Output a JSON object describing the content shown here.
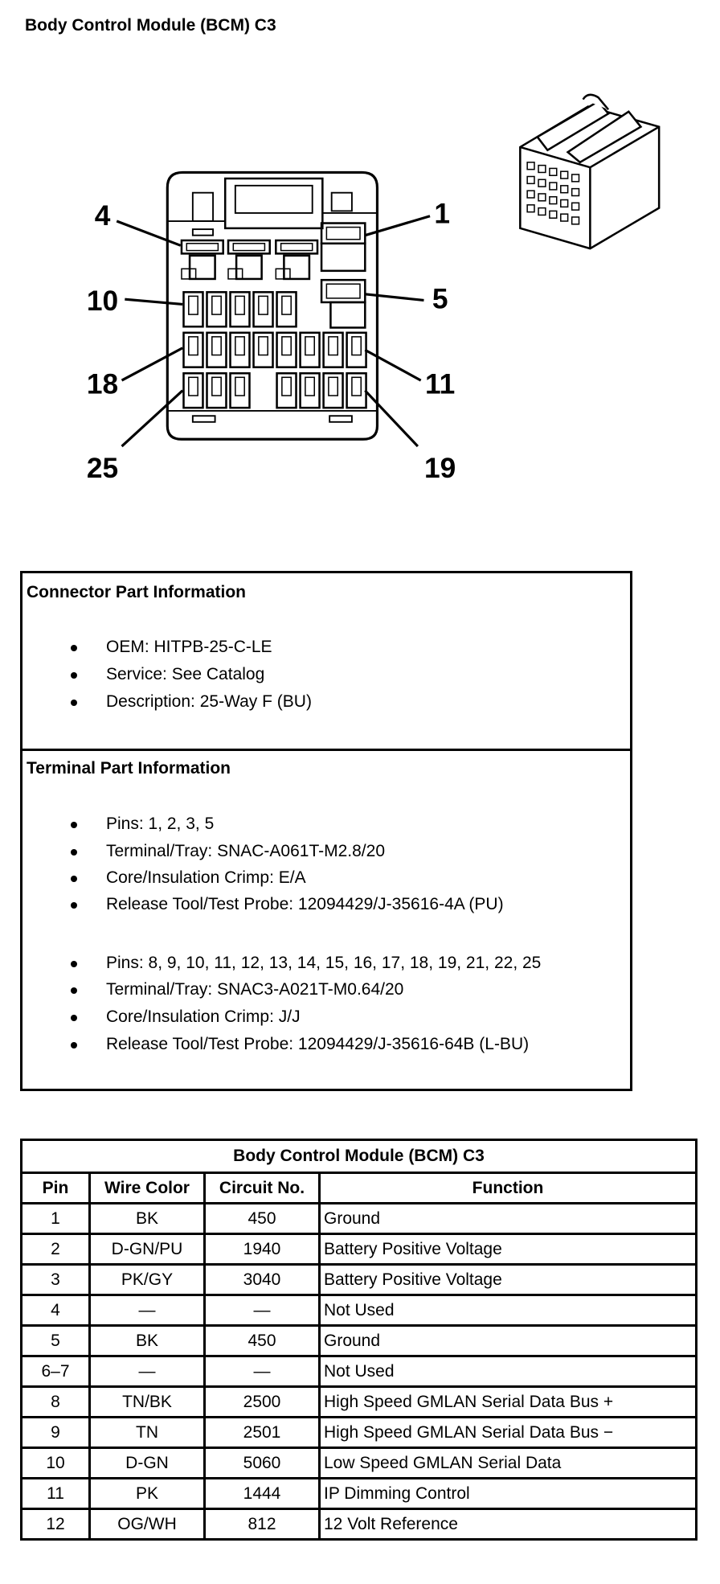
{
  "title": "Body Control Module (BCM) C3",
  "diagram": {
    "pin_labels": [
      "4",
      "1",
      "10",
      "5",
      "18",
      "11",
      "25",
      "19"
    ]
  },
  "connector_info": {
    "heading": "Connector Part Information",
    "items": [
      "OEM: HITPB-25-C-LE",
      "Service: See Catalog",
      "Description: 25-Way F (BU)"
    ]
  },
  "terminal_info": {
    "heading": "Terminal Part Information",
    "group1": [
      "Pins: 1, 2, 3, 5",
      "Terminal/Tray: SNAC-A061T-M2.8/20",
      "Core/Insulation Crimp: E/A",
      "Release Tool/Test Probe: 12094429/J-35616-4A (PU)"
    ],
    "group2": [
      "Pins: 8, 9, 10, 11, 12, 13, 14, 15, 16, 17, 18, 19, 21, 22, 25",
      "Terminal/Tray: SNAC3-A021T-M0.64/20",
      "Core/Insulation Crimp: J/J",
      "Release Tool/Test Probe: 12094429/J-35616-64B (L-BU)"
    ]
  },
  "table": {
    "title": "Body Control Module (BCM) C3",
    "headers": [
      "Pin",
      "Wire Color",
      "Circuit No.",
      "Function"
    ],
    "rows": [
      [
        "1",
        "BK",
        "450",
        "Ground"
      ],
      [
        "2",
        "D-GN/PU",
        "1940",
        "Battery Positive Voltage"
      ],
      [
        "3",
        "PK/GY",
        "3040",
        "Battery Positive Voltage"
      ],
      [
        "4",
        "—",
        "—",
        "Not Used"
      ],
      [
        "5",
        "BK",
        "450",
        "Ground"
      ],
      [
        "6–7",
        "—",
        "—",
        "Not Used"
      ],
      [
        "8",
        "TN/BK",
        "2500",
        "High Speed GMLAN Serial Data Bus +"
      ],
      [
        "9",
        "TN",
        "2501",
        "High Speed GMLAN Serial Data Bus −"
      ],
      [
        "10",
        "D-GN",
        "5060",
        "Low Speed GMLAN Serial Data"
      ],
      [
        "11",
        "PK",
        "1444",
        "IP Dimming Control"
      ],
      [
        "12",
        "OG/WH",
        "812",
        "12 Volt Reference"
      ]
    ]
  }
}
